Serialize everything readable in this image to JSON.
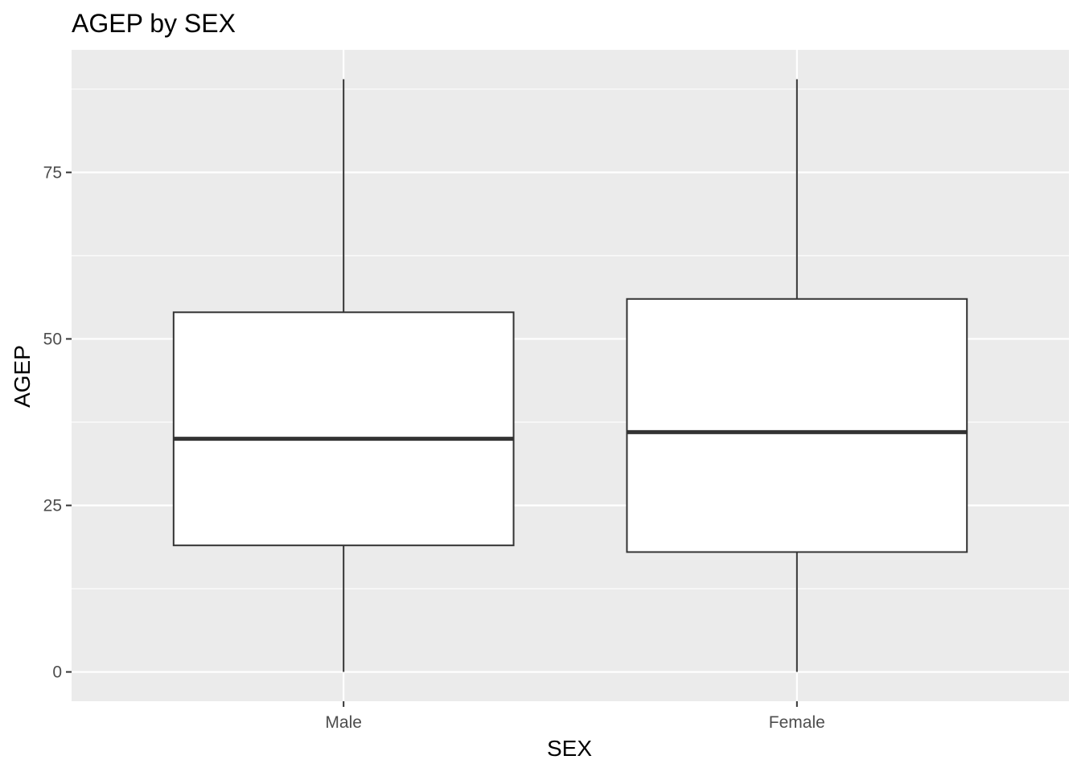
{
  "chart_data": {
    "type": "boxplot",
    "title": "AGEP by SEX",
    "xlabel": "SEX",
    "ylabel": "AGEP",
    "categories": [
      "Male",
      "Female"
    ],
    "boxes": [
      {
        "category": "Male",
        "whisker_low": 0,
        "q1": 19,
        "median": 35,
        "q3": 54,
        "whisker_high": 89
      },
      {
        "category": "Female",
        "whisker_low": 0,
        "q1": 18,
        "median": 36,
        "q3": 56,
        "whisker_high": 89
      }
    ],
    "yticks": [
      0,
      25,
      50,
      75
    ],
    "ylim": [
      -4.4,
      93.4
    ],
    "grid": true,
    "colors": {
      "panel": "#ebebeb",
      "grid": "#ffffff",
      "box_fill": "#ffffff",
      "box_line": "#333333",
      "tick": "#333333"
    }
  }
}
